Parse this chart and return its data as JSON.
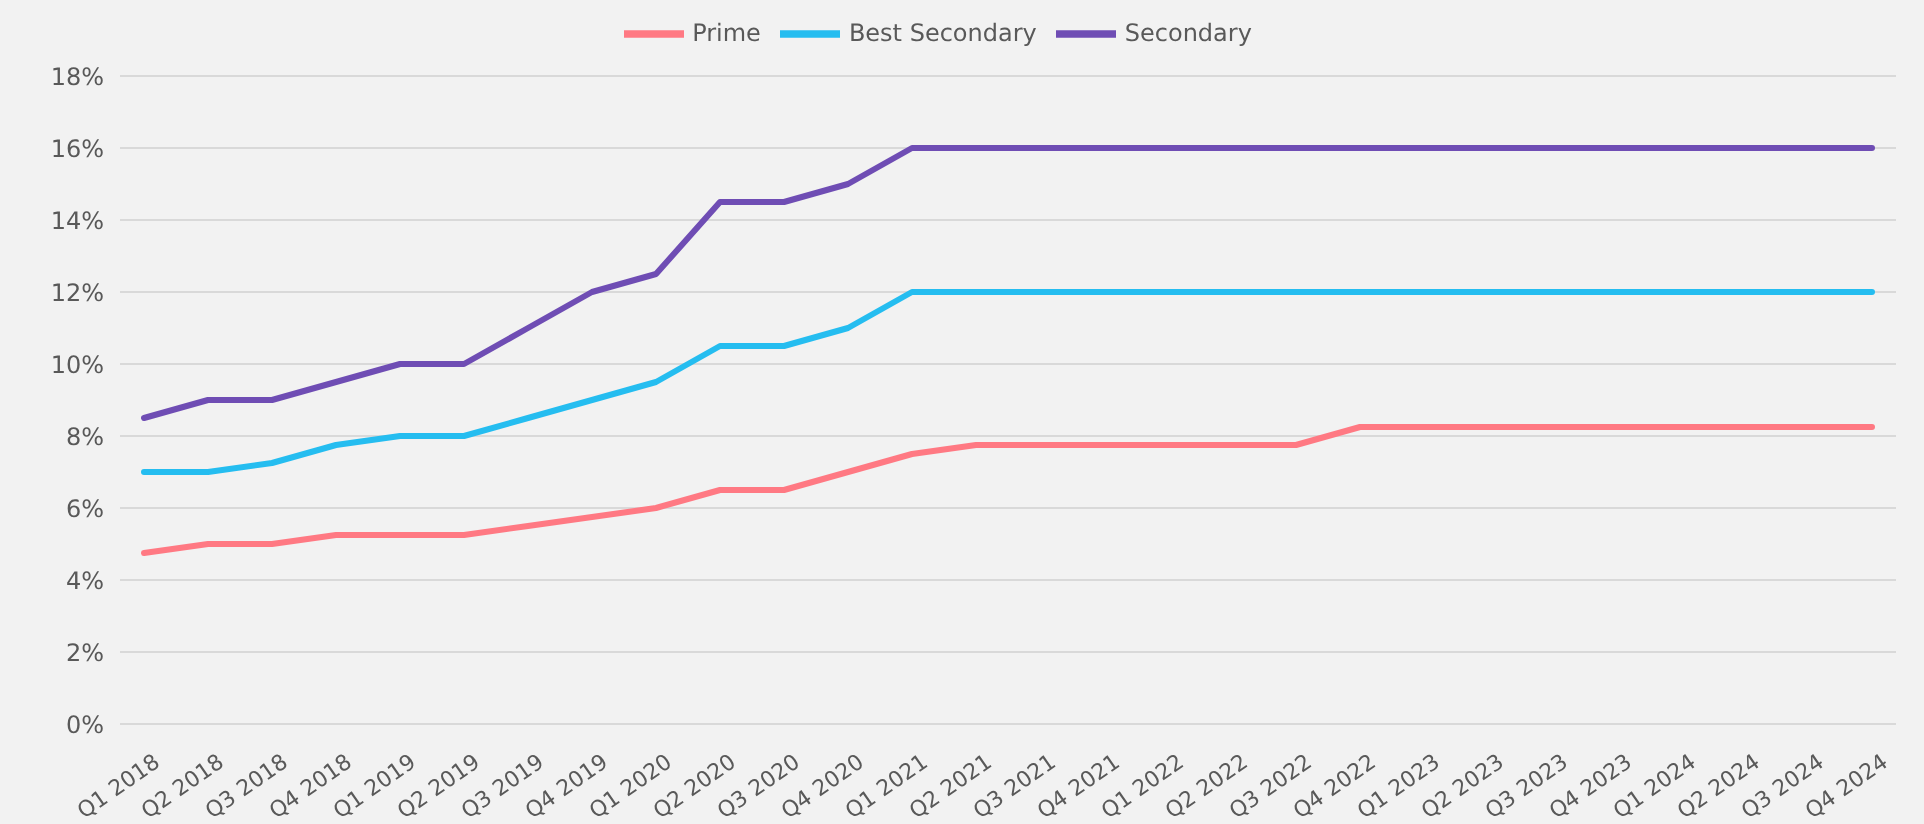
{
  "chart_data": {
    "type": "line",
    "categories": [
      "Q1 2018",
      "Q2 2018",
      "Q3 2018",
      "Q4 2018",
      "Q1 2019",
      "Q2 2019",
      "Q3 2019",
      "Q4 2019",
      "Q1 2020",
      "Q2 2020",
      "Q3 2020",
      "Q4 2020",
      "Q1 2021",
      "Q2 2021",
      "Q3 2021",
      "Q4 2021",
      "Q1 2022",
      "Q2 2022",
      "Q3 2022",
      "Q4 2022",
      "Q1 2023",
      "Q2 2023",
      "Q3 2023",
      "Q4 2023",
      "Q1 2024",
      "Q2 2024",
      "Q3 2024",
      "Q4 2024"
    ],
    "series": [
      {
        "name": "Prime",
        "color": "#ff7983",
        "values": [
          4.75,
          5,
          5,
          5.25,
          5.25,
          5.25,
          5.5,
          5.75,
          6,
          6.5,
          6.5,
          7,
          7.5,
          7.75,
          7.75,
          7.75,
          7.75,
          7.75,
          7.75,
          8.25,
          8.25,
          8.25,
          8.25,
          8.25,
          8.25,
          8.25,
          8.25,
          8.25
        ]
      },
      {
        "name": "Best Secondary",
        "color": "#25bdf0",
        "values": [
          7,
          7,
          7.25,
          7.75,
          8,
          8,
          8.5,
          9,
          9.5,
          10.5,
          10.5,
          11,
          12,
          12,
          12,
          12,
          12,
          12,
          12,
          12,
          12,
          12,
          12,
          12,
          12,
          12,
          12,
          12
        ]
      },
      {
        "name": "Secondary",
        "color": "#6f4db4",
        "values": [
          8.5,
          9,
          9,
          9.5,
          10,
          10,
          11,
          12,
          12.5,
          14.5,
          14.5,
          15,
          16,
          16,
          16,
          16,
          16,
          16,
          16,
          16,
          16,
          16,
          16,
          16,
          16,
          16,
          16,
          16
        ]
      }
    ],
    "ylim": [
      0,
      18
    ],
    "yticks": [
      {
        "value": 0,
        "label": "0%"
      },
      {
        "value": 2,
        "label": "2%"
      },
      {
        "value": 4,
        "label": "4%"
      },
      {
        "value": 6,
        "label": "6%"
      },
      {
        "value": 8,
        "label": "8%"
      },
      {
        "value": 10,
        "label": "10%"
      },
      {
        "value": 12,
        "label": "12%"
      },
      {
        "value": 14,
        "label": "14%"
      },
      {
        "value": 16,
        "label": "16%"
      },
      {
        "value": 18,
        "label": "18%"
      }
    ],
    "grid": "y",
    "legend": "top",
    "marker": "none",
    "line_style": "solid"
  }
}
